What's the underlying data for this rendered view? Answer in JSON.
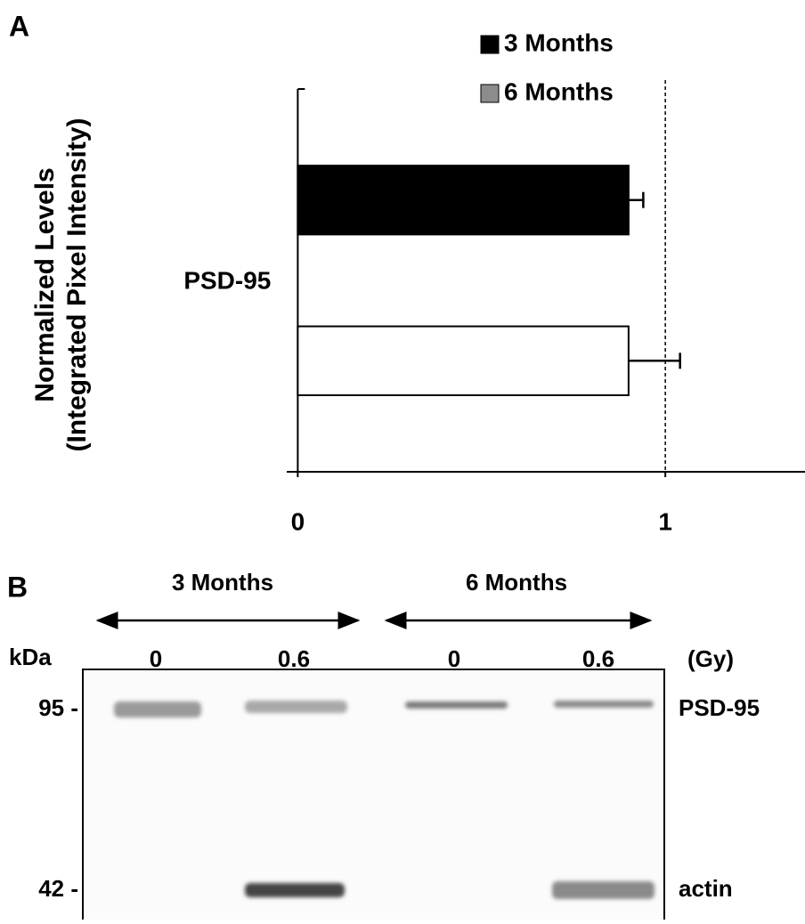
{
  "chart_data": {
    "type": "hbar",
    "panel_label": "A",
    "ylabel": [
      "Normalized Levels",
      "(Integrated Pixel Intensity)"
    ],
    "categories": [
      "PSD-95"
    ],
    "series": [
      {
        "name": "3 Months",
        "color": "#000000",
        "swatch_color": "#000000",
        "values": [
          0.9
        ],
        "errors": [
          0.04
        ]
      },
      {
        "name": "6 Months",
        "color": "#ffffff",
        "swatch_color": "#8c8c8c",
        "values": [
          0.9
        ],
        "errors": [
          0.14
        ]
      }
    ],
    "xlim": [
      -0.03,
      1.38
    ],
    "xticks": [
      0,
      1
    ],
    "reference_line": 1
  },
  "panel_b": {
    "panel_label": "B",
    "groups": [
      "3 Months",
      "6 Months"
    ],
    "unit_label": "kDa",
    "dose_unit": "(Gy)",
    "doses": [
      "0",
      "0.6",
      "0",
      "0.6"
    ],
    "markers": [
      "95 -",
      "42 -"
    ],
    "bands": [
      "PSD-95",
      "actin"
    ]
  }
}
